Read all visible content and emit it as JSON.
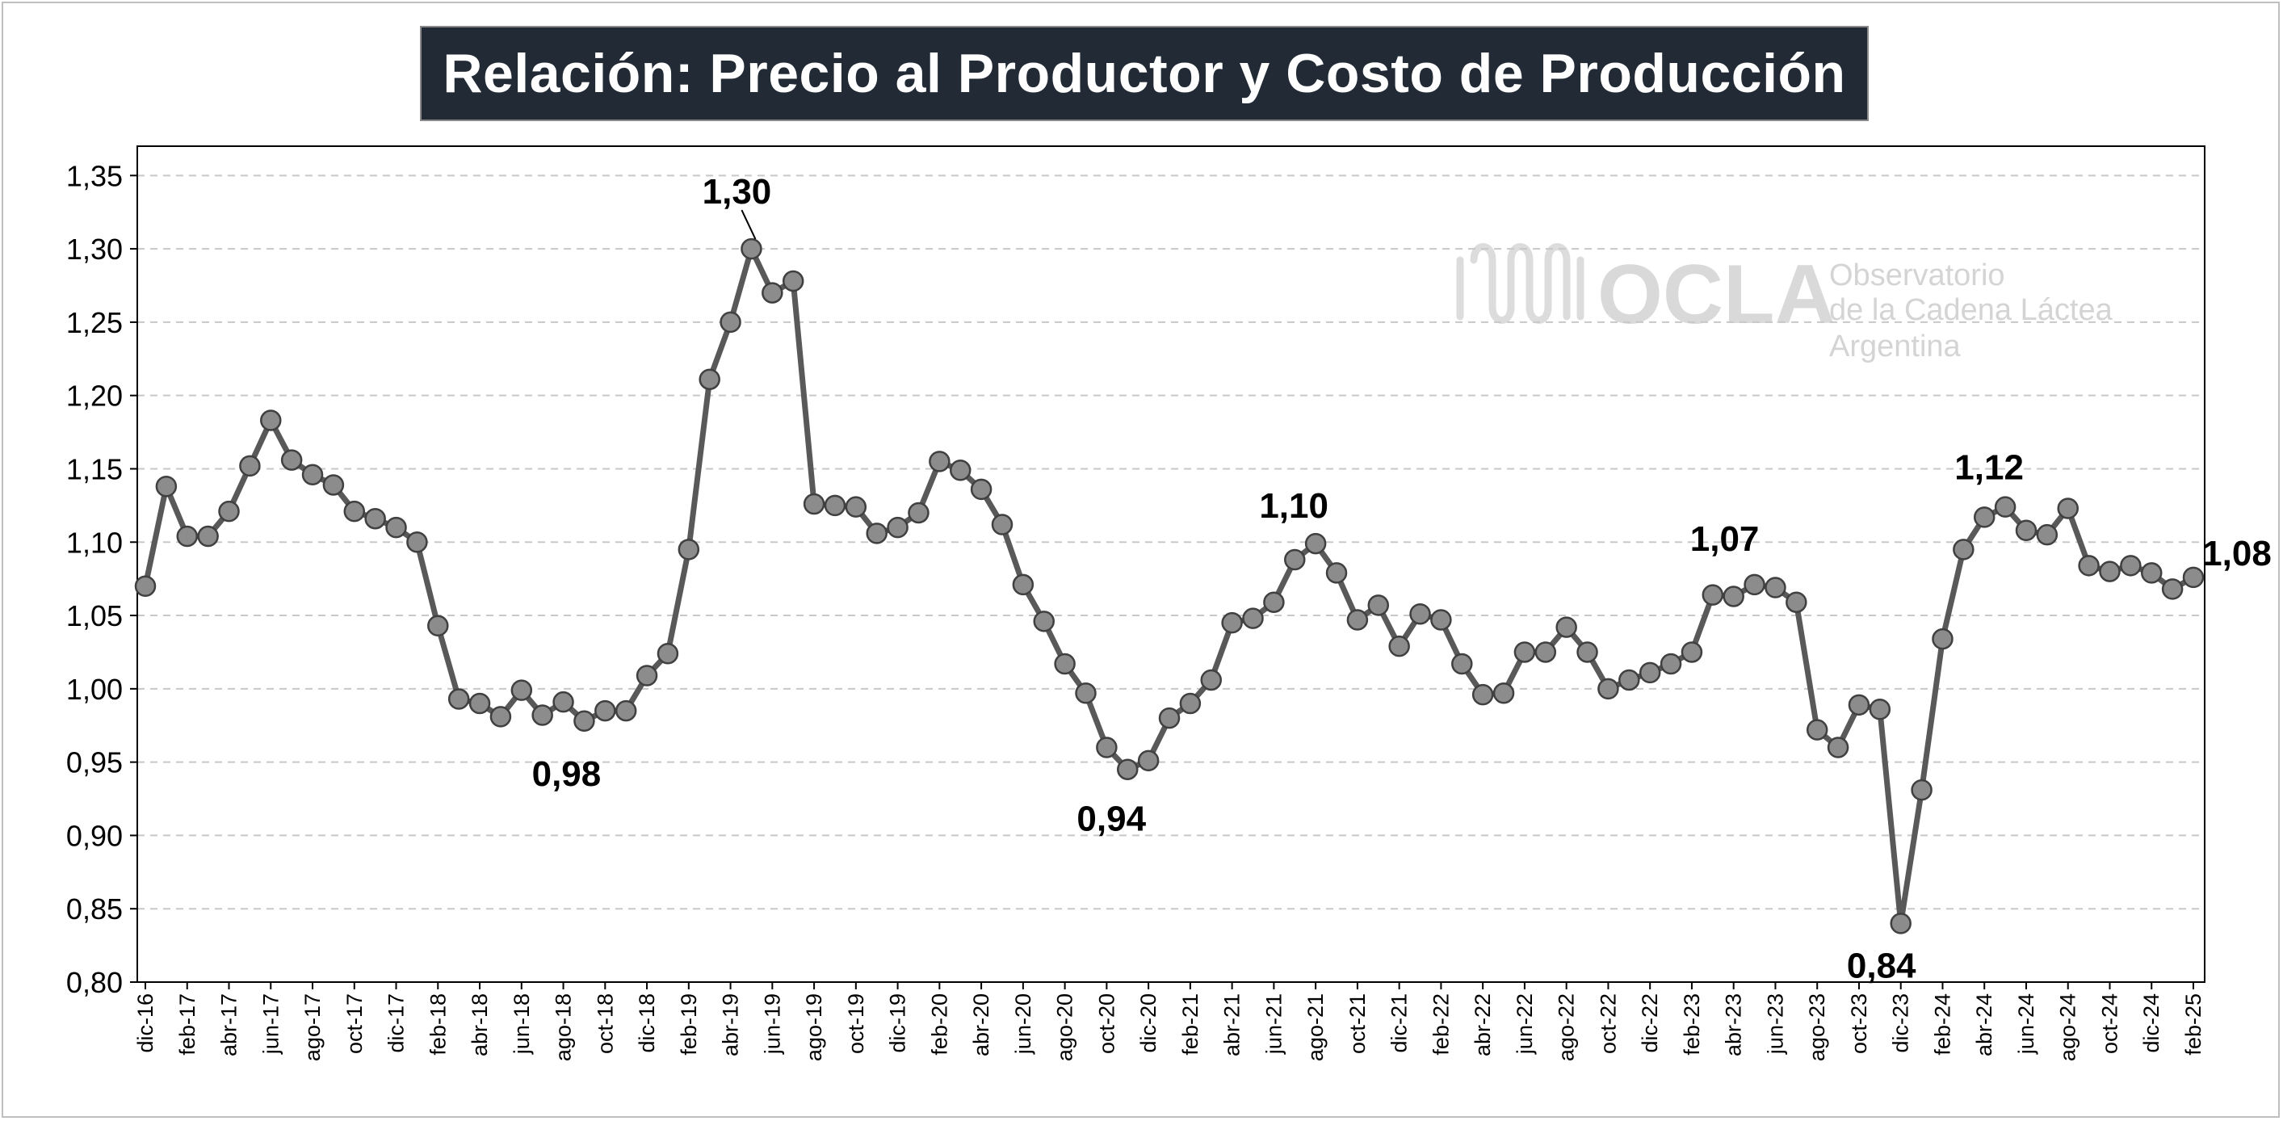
{
  "chart_data": {
    "type": "line",
    "title": "Relación: Precio al Productor y Costo de Producción",
    "xlabel": "",
    "ylabel": "",
    "ylim": [
      0.8,
      1.35
    ],
    "y_ticks": [
      "1,35",
      "1,30",
      "1,25",
      "1,20",
      "1,15",
      "1,10",
      "1,05",
      "1,00",
      "0,95",
      "0,90",
      "0,85",
      "0,80"
    ],
    "y_tick_values": [
      1.35,
      1.3,
      1.25,
      1.2,
      1.15,
      1.1,
      1.05,
      1.0,
      0.95,
      0.9,
      0.85,
      0.8
    ],
    "x_tick_labels": [
      "dic-16",
      "feb-17",
      "abr-17",
      "jun-17",
      "ago-17",
      "oct-17",
      "dic-17",
      "feb-18",
      "abr-18",
      "jun-18",
      "ago-18",
      "oct-18",
      "dic-18",
      "feb-19",
      "abr-19",
      "jun-19",
      "ago-19",
      "oct-19",
      "dic-19",
      "feb-20",
      "abr-20",
      "jun-20",
      "ago-20",
      "oct-20",
      "dic-20",
      "feb-21",
      "abr-21",
      "jun-21",
      "ago-21",
      "oct-21",
      "dic-21",
      "feb-22",
      "abr-22",
      "jun-22",
      "ago-22",
      "oct-22",
      "dic-22",
      "feb-23",
      "abr-23",
      "jun-23",
      "ago-23",
      "oct-23",
      "dic-23",
      "feb-24",
      "abr-24",
      "jun-24",
      "ago-24",
      "oct-24",
      "dic-24",
      "feb-25"
    ],
    "grid": true,
    "legend": "none",
    "series": [
      {
        "values": [
          1.07,
          1.138,
          1.104,
          1.104,
          1.121,
          1.152,
          1.183,
          1.156,
          1.146,
          1.139,
          1.121,
          1.116,
          1.11,
          1.1,
          1.043,
          0.993,
          0.99,
          0.981,
          0.999,
          0.982,
          0.991,
          0.978,
          0.985,
          0.985,
          1.009,
          1.024,
          1.095,
          1.211,
          1.25,
          1.3,
          1.27,
          1.278,
          1.126,
          1.125,
          1.124,
          1.106,
          1.11,
          1.12,
          1.155,
          1.149,
          1.136,
          1.112,
          1.071,
          1.046,
          1.017,
          0.997,
          0.96,
          0.945,
          0.951,
          0.98,
          0.99,
          1.006,
          1.045,
          1.048,
          1.059,
          1.088,
          1.099,
          1.079,
          1.047,
          1.057,
          1.029,
          1.051,
          1.047,
          1.017,
          0.996,
          0.997,
          1.025,
          1.025,
          1.042,
          1.025,
          1.0,
          1.006,
          1.011,
          1.017,
          1.025,
          1.064,
          1.063,
          1.071,
          1.069,
          1.059,
          0.972,
          0.96,
          0.989,
          0.986,
          0.84,
          0.931,
          1.034,
          1.095,
          1.117,
          1.124,
          1.108,
          1.105,
          1.123,
          1.084,
          1.08,
          1.084,
          1.079,
          1.068,
          1.076
        ]
      }
    ],
    "data_labels": [
      {
        "index": 29,
        "text": "1,30"
      },
      {
        "index": 21,
        "text": "0,98"
      },
      {
        "index": 47,
        "text": "0,94"
      },
      {
        "index": 56,
        "text": "1,10"
      },
      {
        "index": 77,
        "text": "1,07"
      },
      {
        "index": 84,
        "text": "0,84"
      },
      {
        "index": 89,
        "text": "1,12"
      },
      {
        "index": 98,
        "text": "1,08"
      }
    ],
    "colors": {
      "line": "#595959",
      "marker_fill": "#8c8c8c",
      "marker_edge": "#404040",
      "grid": "#c8c8c8",
      "title_bg": "#222a35",
      "title_text": "#ffffff"
    }
  },
  "watermark": {
    "brand": "OCLA",
    "line1": "Observatorio",
    "line2": "de la Cadena Láctea",
    "line3": "Argentina",
    "icon": "milk-waves-logo-icon"
  }
}
